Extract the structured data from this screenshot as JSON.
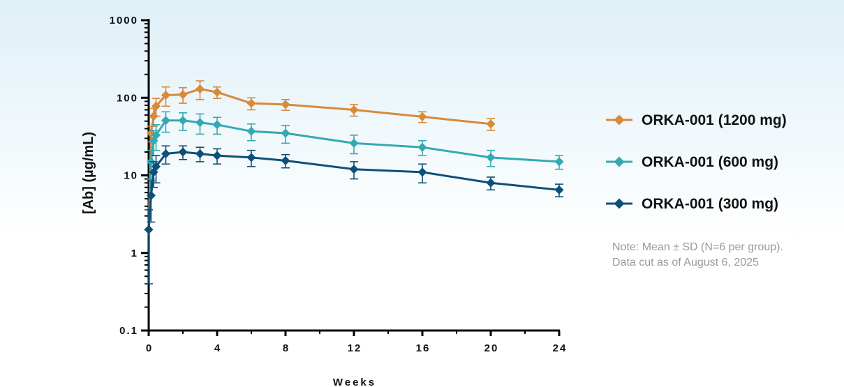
{
  "chart_data": {
    "type": "line",
    "yscale": "log",
    "ylim": [
      0.1,
      1000
    ],
    "xlim": [
      0,
      24
    ],
    "xlabel": "Weeks",
    "ylabel": "[Ab] (µg/mL)",
    "x_ticks": [
      "0",
      "4",
      "8",
      "12",
      "16",
      "20",
      "24"
    ],
    "y_ticks": [
      "0.1",
      "1",
      "10",
      "100",
      "1000"
    ],
    "error_bars": "SD",
    "legend_position": "right",
    "series": [
      {
        "name": "ORKA-001 (1200 mg)",
        "color": "#d8893b",
        "x": [
          0,
          0.14,
          0.29,
          0.43,
          1,
          2,
          3,
          4,
          6,
          8,
          12,
          16,
          20
        ],
        "y": [
          2,
          35,
          58,
          78,
          108,
          110,
          130,
          118,
          85,
          82,
          70,
          57,
          46
        ],
        "sd": [
          0,
          8,
          15,
          20,
          30,
          25,
          35,
          20,
          15,
          13,
          12,
          9,
          8
        ]
      },
      {
        "name": "ORKA-001 (600 mg)",
        "color": "#35a9b3",
        "x": [
          0,
          0.14,
          0.29,
          0.43,
          1,
          2,
          3,
          4,
          6,
          8,
          12,
          16,
          20,
          24
        ],
        "y": [
          2,
          15,
          28,
          33,
          51,
          51,
          48,
          45,
          37,
          35,
          26,
          23,
          17,
          15
        ],
        "sd": [
          0,
          6,
          10,
          12,
          15,
          13,
          14,
          11,
          9,
          9,
          7,
          5,
          4,
          3
        ]
      },
      {
        "name": "ORKA-001 (300 mg)",
        "color": "#0e4f78",
        "x": [
          0,
          0.14,
          0.29,
          0.43,
          1,
          2,
          3,
          4,
          6,
          8,
          12,
          16,
          20,
          24
        ],
        "y": [
          2,
          5.5,
          11,
          13,
          19,
          20,
          19,
          18,
          17,
          15.5,
          12,
          11,
          8,
          6.5
        ],
        "sd": [
          1.6,
          3,
          4,
          5,
          5,
          4,
          4,
          4,
          4,
          3,
          3,
          3,
          1.5,
          1.2
        ]
      }
    ]
  },
  "note": {
    "line1": "Note:  Mean ± SD (N=6 per group).",
    "line2": "Data cut as of August 6, 2025"
  }
}
